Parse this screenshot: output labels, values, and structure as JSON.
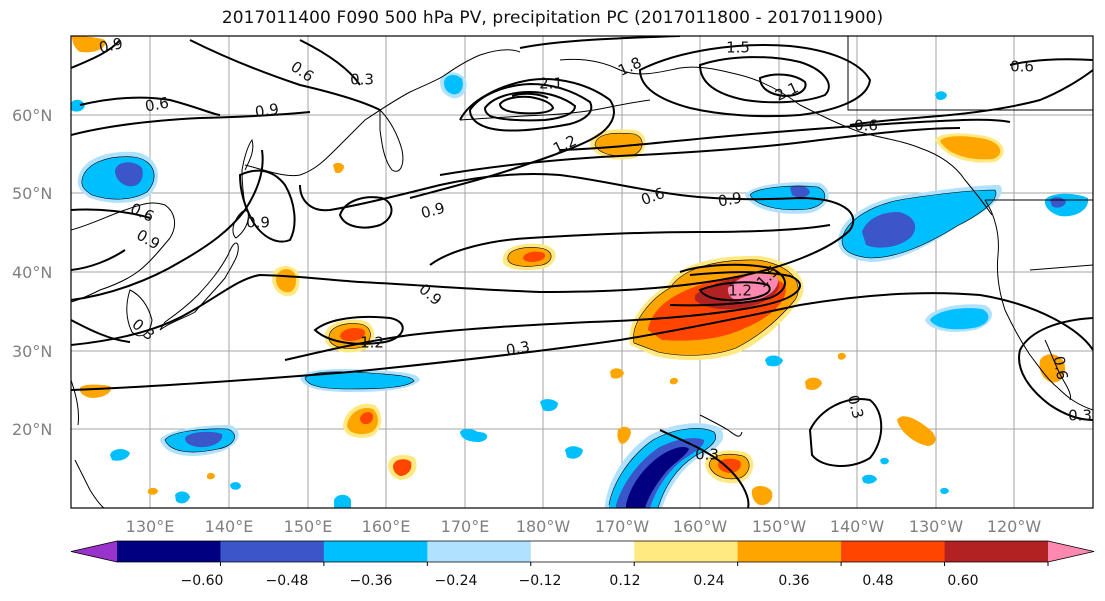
{
  "title": "2017011400 F090 500 hPa PV, precipitation PC (2017011800 - 2017011900)",
  "lat_labels": [
    "60°N",
    "50°N",
    "40°N",
    "30°N",
    "20°N"
  ],
  "lon_labels": [
    "130°E",
    "140°E",
    "150°E",
    "160°E",
    "170°E",
    "180°W",
    "170°W",
    "160°W",
    "150°W",
    "140°W",
    "130°W",
    "120°W"
  ],
  "colorbar": {
    "ticks": [
      "−0.60",
      "−0.48",
      "−0.36",
      "−0.24",
      "−0.12",
      "0.12",
      "0.24",
      "0.36",
      "0.48",
      "0.60"
    ],
    "colors": [
      "#9933cc",
      "#000080",
      "#3a56c8",
      "#00bfff",
      "#b0e2ff",
      "#ffffff",
      "#ffe980",
      "#ffa500",
      "#ff4500",
      "#b22222",
      "#ff88b0"
    ]
  },
  "contour_labels": [
    "0.9",
    "0.6",
    "0.3",
    "0.6",
    "0.9",
    "2.1",
    "1.8",
    "1.5",
    "2.1",
    "0.6",
    "0.6",
    "1.2",
    "0.6",
    "0.9",
    "0.9",
    "0.6",
    "0.9",
    "0.9",
    "1.2",
    "1.5",
    "1.2",
    "0.3",
    "0.3",
    "0.3",
    "0.3",
    "0.3",
    "0.9",
    "0.6"
  ],
  "colors": {
    "positive_strong": "#ff4500",
    "positive_mid": "#ffa500",
    "positive_weak": "#ffe980",
    "negative_weak": "#b0e2ff",
    "negative_mid": "#00bfff",
    "negative_strong": "#3a56c8",
    "negative_extreme": "#000080",
    "grid": "#a0a0a0"
  }
}
